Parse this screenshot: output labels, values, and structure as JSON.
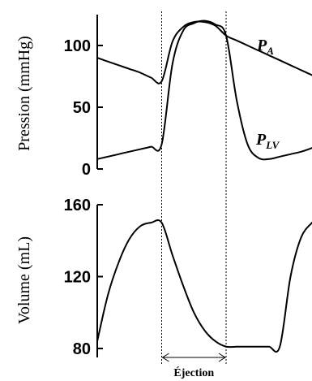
{
  "chart_data": [
    {
      "type": "line",
      "title": "",
      "xlabel": "",
      "ylabel": "Pression (mmHg)",
      "ylim": [
        0,
        125
      ],
      "yticks": [
        0,
        50,
        100
      ],
      "grid": false,
      "x": [
        0,
        0.05,
        0.1,
        0.15,
        0.2,
        0.25,
        0.3,
        0.35,
        0.4,
        0.45,
        0.5,
        0.55,
        0.6,
        0.65,
        0.7,
        0.75,
        0.8,
        0.85,
        0.9,
        0.95,
        1
      ],
      "series": [
        {
          "name": "P_A",
          "name_parts": {
            "main": "P",
            "sub": "A"
          },
          "values": [
            90,
            87,
            84,
            81,
            78,
            74,
            71,
            103,
            115,
            119,
            119,
            116,
            108,
            104,
            100,
            96,
            92,
            88,
            84,
            80,
            76
          ]
        },
        {
          "name": "P_LV",
          "name_parts": {
            "main": "P",
            "sub": "LV"
          },
          "values": [
            8,
            10,
            12,
            14,
            16,
            18,
            20,
            85,
            112,
            118,
            120,
            117,
            108,
            55,
            20,
            9,
            8,
            10,
            12,
            14,
            17
          ]
        }
      ]
    },
    {
      "type": "line",
      "title": "",
      "xlabel": "",
      "ylabel": "Volume (mL)",
      "ylim": [
        75,
        160
      ],
      "yticks": [
        80,
        120,
        160
      ],
      "grid": false,
      "x": [
        0,
        0.05,
        0.1,
        0.15,
        0.2,
        0.25,
        0.3,
        0.35,
        0.4,
        0.45,
        0.5,
        0.55,
        0.6,
        0.65,
        0.7,
        0.75,
        0.8,
        0.85,
        0.9,
        0.95,
        1
      ],
      "series": [
        {
          "name": "",
          "values": [
            84,
            110,
            128,
            141,
            148,
            150,
            150,
            132,
            115,
            100,
            90,
            84,
            81,
            81,
            81,
            81,
            81,
            81,
            120,
            142,
            150
          ]
        }
      ]
    }
  ],
  "ejection": {
    "label": "Éjection",
    "x_start": 0.3,
    "x_end": 0.6
  }
}
